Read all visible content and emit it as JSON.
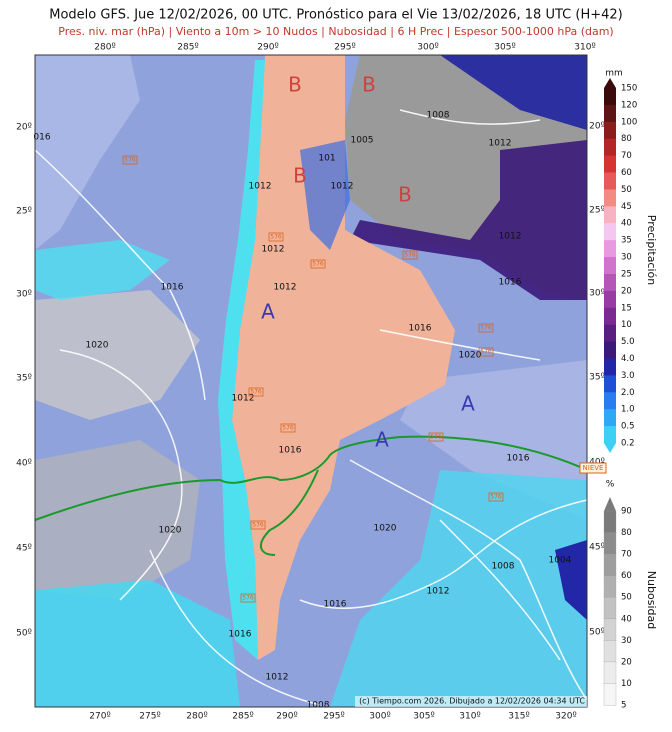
{
  "header": {
    "title": "Modelo GFS. Jue 12/02/2026, 00 UTC. Pronóstico para el Vie 13/02/2026, 18 UTC (H+42)",
    "subtitle": "Pres. niv. mar (hPa) | Viento a 10m > 10 Nudos | Nubosidad | 6 H Prec | Espesor 500-1000 hPa (dam)"
  },
  "map": {
    "top_lon_labels": [
      "280º",
      "285º",
      "290º",
      "295º",
      "300º",
      "305º",
      "310º"
    ],
    "bottom_lon_labels": [
      "270º",
      "275º",
      "280º",
      "285º",
      "290º",
      "295º",
      "300º",
      "305º",
      "310º",
      "315º",
      "320º"
    ],
    "left_lat_labels": [
      "20º",
      "25º",
      "30º",
      "35º",
      "40º",
      "45º",
      "50º"
    ],
    "right_lat_labels": [
      "20º",
      "25º",
      "30º",
      "35º",
      "40º",
      "45º",
      "50º"
    ],
    "pressure_labels": [
      "016",
      "1008",
      "1005",
      "1012",
      "101",
      "1012",
      "1012",
      "1012",
      "1012",
      "1016",
      "1012",
      "1016",
      "1020",
      "1016",
      "1020",
      "1012",
      "1016",
      "1016",
      "1020",
      "1020",
      "1008",
      "1004",
      "1012",
      "1016",
      "1016",
      "1012",
      "1008"
    ],
    "centers": [
      "B",
      "B",
      "B",
      "B",
      "A",
      "A",
      "A"
    ],
    "thickness_labels": [
      "576",
      "576",
      "576",
      "576",
      "576",
      "576",
      "576",
      "576",
      "576",
      "576",
      "576",
      "576"
    ],
    "snow_label": "NIEVE",
    "credit": "(c) Tiempo.com 2026. Dibujado a 12/02/2026 04:34 UTC"
  },
  "precip_legend": {
    "unit": "mm",
    "title": "Precipitación",
    "ticks": [
      "150",
      "120",
      "100",
      "80",
      "70",
      "60",
      "50",
      "45",
      "40",
      "35",
      "30",
      "25",
      "20",
      "15",
      "10",
      "5.0",
      "4.0",
      "3.0",
      "2.0",
      "1.0",
      "0.5",
      "0.2"
    ],
    "colors": [
      "#3b0a0a",
      "#5c1414",
      "#8a1c1c",
      "#b32626",
      "#d63333",
      "#e85a5a",
      "#f28c82",
      "#f7b3c2",
      "#f5c6f0",
      "#e89ae0",
      "#cf73cc",
      "#b356b8",
      "#963ca3",
      "#7a2a91",
      "#5a1e80",
      "#3c1a7a",
      "#2227a8",
      "#1f4fd6",
      "#2a7df0",
      "#2ea8f5",
      "#3cd0f5"
    ]
  },
  "cloud_legend": {
    "unit": "%",
    "title": "Nubosidad",
    "ticks": [
      "90",
      "80",
      "70",
      "60",
      "50",
      "40",
      "30",
      "20",
      "10",
      "5"
    ],
    "colors": [
      "#7a7a7a",
      "#8c8c8c",
      "#9e9e9e",
      "#b0b0b0",
      "#c2c2c2",
      "#d2d2d2",
      "#e0e0e0",
      "#ececec",
      "#f6f6f6"
    ]
  }
}
